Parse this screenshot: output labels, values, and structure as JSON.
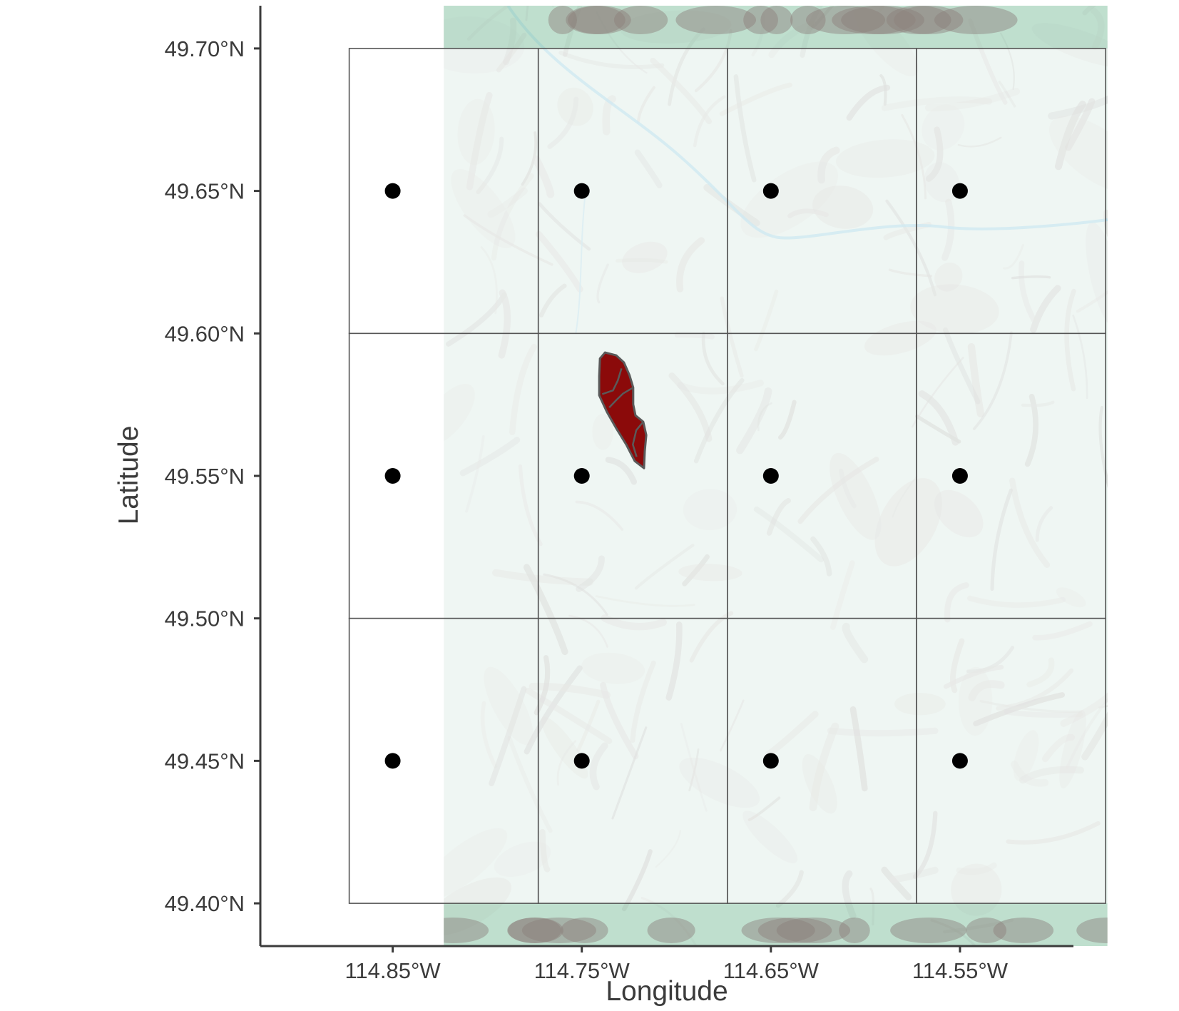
{
  "chart_data": {
    "type": "map",
    "xlabel": "Longitude",
    "ylabel": "Latitude",
    "x_ticks": [
      -114.85,
      -114.75,
      -114.65,
      -114.55
    ],
    "x_tick_labels": [
      "114.85°W",
      "114.75°W",
      "114.65°W",
      "114.55°W"
    ],
    "y_ticks": [
      49.7,
      49.65,
      49.6,
      49.55,
      49.5,
      49.45,
      49.4
    ],
    "y_tick_labels": [
      "49.70°N",
      "49.65°N",
      "49.60°N",
      "49.55°N",
      "49.50°N",
      "49.45°N",
      "49.40°N"
    ],
    "xlim": [
      -114.92,
      -114.49
    ],
    "ylim": [
      49.385,
      49.715
    ],
    "basemap": {
      "type": "terrain",
      "extent": {
        "lon": [
          -114.823,
          -114.472
        ],
        "lat": [
          49.385,
          49.715
        ]
      },
      "color": "#e6f1ec"
    },
    "grid_cells": {
      "lon_edges": [
        -114.873,
        -114.773,
        -114.673,
        -114.573,
        -114.473
      ],
      "lat_edges": [
        49.7,
        49.6,
        49.5,
        49.4
      ],
      "stroke": "#555555"
    },
    "grid_points": {
      "lons": [
        -114.85,
        -114.75,
        -114.65,
        -114.55
      ],
      "lats": [
        49.65,
        49.55,
        49.45
      ],
      "color": "#000000"
    },
    "polygon": {
      "fill": "#8b0a0a",
      "stroke": "#5a5a5a",
      "coords": [
        [
          -114.7377,
          49.5933
        ],
        [
          -114.7318,
          49.5923
        ],
        [
          -114.7277,
          49.5898
        ],
        [
          -114.7248,
          49.5854
        ],
        [
          -114.7228,
          49.581
        ],
        [
          -114.7228,
          49.5751
        ],
        [
          -114.7216,
          49.5712
        ],
        [
          -114.7175,
          49.569
        ],
        [
          -114.7159,
          49.5643
        ],
        [
          -114.7167,
          49.5586
        ],
        [
          -114.7171,
          49.5527
        ],
        [
          -114.722,
          49.5552
        ],
        [
          -114.7265,
          49.561
        ],
        [
          -114.7318,
          49.5667
        ],
        [
          -114.7367,
          49.5724
        ],
        [
          -114.7408,
          49.5783
        ],
        [
          -114.7408,
          49.585
        ],
        [
          -114.7404,
          49.5912
        ]
      ],
      "inner_lines": [
        [
          [
            -114.729,
            49.5877
          ],
          [
            -114.731,
            49.5834
          ],
          [
            -114.7335,
            49.58
          ],
          [
            -114.7392,
            49.5787
          ]
        ],
        [
          [
            -114.7228,
            49.581
          ],
          [
            -114.7282,
            49.5789
          ],
          [
            -114.7322,
            49.5763
          ],
          [
            -114.7355,
            49.574
          ]
        ],
        [
          [
            -114.7175,
            49.569
          ],
          [
            -114.7212,
            49.566
          ],
          [
            -114.723,
            49.561
          ],
          [
            -114.721,
            49.5567
          ]
        ]
      ]
    }
  }
}
